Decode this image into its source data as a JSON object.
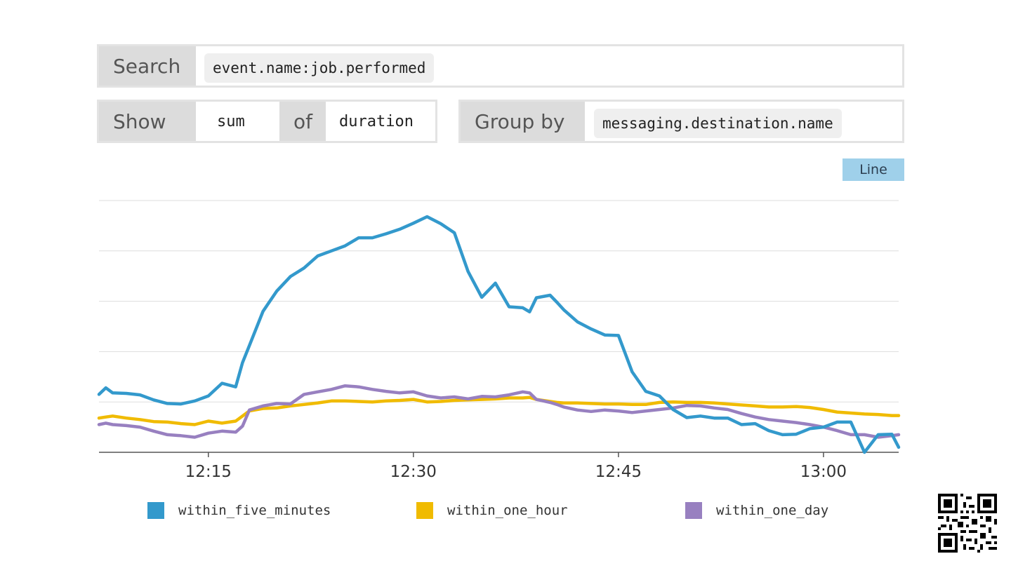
{
  "query": {
    "search_label": "Search",
    "search_value": "event.name:job.performed",
    "show_label": "Show",
    "aggregation": "sum",
    "of_label": "of",
    "field": "duration",
    "group_by_label": "Group by",
    "group_by_value": "messaging.destination.name"
  },
  "chart_toggle": {
    "type_label": "Line"
  },
  "colors": {
    "within_five_minutes": "#3399cc",
    "within_one_hour": "#f0bb00",
    "within_one_day": "#9880c0",
    "gridline": "#dddddd",
    "axis": "#555555"
  },
  "chart_data": {
    "type": "line",
    "title": "",
    "xlabel": "",
    "ylabel": "",
    "x_unit": "minutes past 12:00",
    "x_ticks": [
      "12:15",
      "12:30",
      "12:45",
      "13:00"
    ],
    "x_tick_values": [
      15,
      30,
      45,
      60
    ],
    "xlim": [
      7,
      65.5
    ],
    "y_tick_labels_shown": false,
    "y_gridlines": 5,
    "ylim": [
      0,
      5
    ],
    "grid": true,
    "legend_position": "bottom",
    "x": [
      7,
      7.5,
      8,
      9,
      10,
      11,
      12,
      13,
      14,
      15,
      16,
      17,
      17.5,
      18,
      19,
      20,
      21,
      22,
      23,
      24,
      25,
      26,
      27,
      28,
      29,
      30,
      31,
      32,
      33,
      34,
      35,
      36,
      37,
      38,
      38.5,
      39,
      40,
      40.5,
      41,
      42,
      43,
      44,
      45,
      46,
      47,
      48,
      49,
      50,
      51,
      52,
      53,
      54,
      55,
      56,
      57,
      58,
      59,
      60,
      61,
      62,
      63,
      64,
      65,
      65.5
    ],
    "series": [
      {
        "name": "within_five_minutes",
        "values": [
          1.15,
          1.28,
          1.18,
          1.17,
          1.14,
          1.04,
          0.97,
          0.96,
          1.02,
          1.12,
          1.37,
          1.3,
          1.78,
          2.12,
          2.8,
          3.2,
          3.49,
          3.66,
          3.9,
          4.0,
          4.1,
          4.26,
          4.26,
          4.34,
          4.43,
          4.55,
          4.68,
          4.54,
          4.36,
          3.59,
          3.08,
          3.36,
          2.89,
          2.87,
          2.79,
          3.07,
          3.12,
          2.98,
          2.83,
          2.59,
          2.45,
          2.33,
          2.32,
          1.6,
          1.21,
          1.12,
          0.85,
          0.69,
          0.72,
          0.68,
          0.68,
          0.55,
          0.57,
          0.43,
          0.35,
          0.36,
          0.47,
          0.5,
          0.6,
          0.6,
          0.0,
          0.35,
          0.36,
          0.1
        ],
        "note": ""
      },
      {
        "name": "within_one_hour",
        "values": [
          0.68,
          0.7,
          0.72,
          0.68,
          0.65,
          0.61,
          0.6,
          0.57,
          0.55,
          0.62,
          0.58,
          0.62,
          0.72,
          0.82,
          0.87,
          0.88,
          0.92,
          0.95,
          0.98,
          1.02,
          1.02,
          1.01,
          1.0,
          1.02,
          1.03,
          1.05,
          1.0,
          1.01,
          1.03,
          1.04,
          1.05,
          1.06,
          1.08,
          1.08,
          1.09,
          1.05,
          1.01,
          0.99,
          0.98,
          0.98,
          0.97,
          0.96,
          0.96,
          0.95,
          0.95,
          0.99,
          1.0,
          0.99,
          0.99,
          0.98,
          0.96,
          0.94,
          0.92,
          0.9,
          0.9,
          0.91,
          0.89,
          0.85,
          0.8,
          0.78,
          0.76,
          0.75,
          0.73,
          0.73
        ],
        "note": ""
      },
      {
        "name": "within_one_day",
        "values": [
          0.55,
          0.58,
          0.55,
          0.53,
          0.5,
          0.42,
          0.35,
          0.33,
          0.3,
          0.38,
          0.42,
          0.4,
          0.52,
          0.84,
          0.92,
          0.97,
          0.96,
          1.15,
          1.2,
          1.25,
          1.32,
          1.3,
          1.25,
          1.21,
          1.18,
          1.2,
          1.12,
          1.08,
          1.1,
          1.06,
          1.11,
          1.1,
          1.14,
          1.2,
          1.18,
          1.05,
          0.99,
          0.95,
          0.9,
          0.84,
          0.81,
          0.84,
          0.82,
          0.79,
          0.82,
          0.85,
          0.88,
          0.93,
          0.92,
          0.88,
          0.85,
          0.77,
          0.7,
          0.65,
          0.62,
          0.59,
          0.55,
          0.5,
          0.43,
          0.35,
          0.35,
          0.3,
          0.33,
          0.35
        ],
        "note": ""
      }
    ]
  },
  "legend": [
    {
      "label": "within_five_minutes",
      "color": "#3399cc"
    },
    {
      "label": "within_one_hour",
      "color": "#f0bb00"
    },
    {
      "label": "within_one_day",
      "color": "#9880c0"
    }
  ],
  "qr_icon": "qr-code-icon"
}
